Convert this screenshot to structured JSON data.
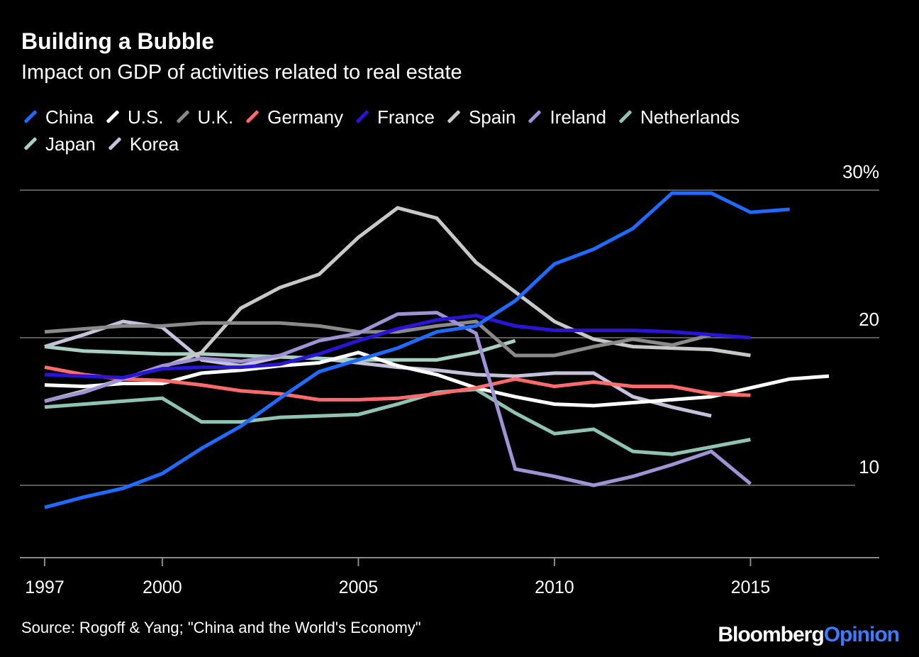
{
  "chart_data": {
    "type": "line",
    "title": "Building a Bubble",
    "subtitle": "Impact on GDP of activities related to real estate",
    "source": "Source: Rogoff & Yang; \"China and the World's Economy\"",
    "logo": {
      "part1": "Bloomberg",
      "part2": "Opinion"
    },
    "ylim": [
      5,
      30
    ],
    "xlim": [
      1997,
      2018
    ],
    "y_ticks": [
      {
        "value": 30,
        "label": "30%"
      },
      {
        "value": 20,
        "label": "20"
      },
      {
        "value": 10,
        "label": "10"
      }
    ],
    "x_ticks": [
      {
        "value": 1997,
        "label": "1997"
      },
      {
        "value": 2000,
        "label": "2000"
      },
      {
        "value": 2005,
        "label": "2005"
      },
      {
        "value": 2010,
        "label": "2010"
      },
      {
        "value": 2015,
        "label": "2015"
      }
    ],
    "grid": true,
    "legend_position": "top",
    "series": [
      {
        "name": "Korea",
        "color": "#c5c3dc",
        "x": [
          1997,
          1998,
          1999,
          2000,
          2001,
          2002,
          2003,
          2004,
          2005,
          2006,
          2007,
          2008,
          2009,
          2010,
          2011,
          2012,
          2013,
          2014
        ],
        "y": [
          19.4,
          20.2,
          21.1,
          20.7,
          18.5,
          18.1,
          18.7,
          18.6,
          18.3,
          18.0,
          17.8,
          17.5,
          17.4,
          17.6,
          17.6,
          16.0,
          15.3,
          14.7
        ]
      },
      {
        "name": "Japan",
        "color": "#a7cfc2",
        "x": [
          1997,
          1998,
          1999,
          2000,
          2001,
          2002,
          2003,
          2004,
          2005,
          2006,
          2007,
          2008,
          2009
        ],
        "y": [
          19.4,
          19.1,
          19.0,
          18.9,
          18.9,
          18.8,
          18.7,
          18.6,
          18.5,
          18.5,
          18.5,
          19.0,
          19.8
        ]
      },
      {
        "name": "Netherlands",
        "color": "#8fc3b3",
        "x": [
          1997,
          1998,
          1999,
          2000,
          2001,
          2002,
          2003,
          2004,
          2005,
          2006,
          2007,
          2008,
          2009,
          2010,
          2011,
          2012,
          2013,
          2014,
          2015
        ],
        "y": [
          15.3,
          15.5,
          15.7,
          15.9,
          14.3,
          14.3,
          14.6,
          14.7,
          14.8,
          15.5,
          16.3,
          16.5,
          14.9,
          13.5,
          13.8,
          12.3,
          12.1,
          12.6,
          13.1
        ]
      },
      {
        "name": "Spain",
        "color": "#c8c8c8",
        "x": [
          1997,
          1998,
          1999,
          2000,
          2001,
          2002,
          2003,
          2004,
          2005,
          2006,
          2007,
          2008,
          2009,
          2010,
          2011,
          2012,
          2013,
          2014,
          2015
        ],
        "y": [
          15.7,
          16.4,
          17.2,
          18.0,
          19.0,
          22.0,
          23.4,
          24.3,
          26.8,
          28.8,
          28.1,
          25.1,
          23.1,
          21.1,
          19.9,
          19.4,
          19.3,
          19.2,
          18.8
        ]
      },
      {
        "name": "U.K.",
        "color": "#8a8a8a",
        "x": [
          1997,
          1998,
          1999,
          2000,
          2001,
          2002,
          2003,
          2004,
          2005,
          2006,
          2007,
          2008,
          2009,
          2010,
          2011,
          2012,
          2013,
          2014
        ],
        "y": [
          20.4,
          20.6,
          20.8,
          20.8,
          21.0,
          21.0,
          21.0,
          20.8,
          20.4,
          20.4,
          20.8,
          21.1,
          18.8,
          18.8,
          19.4,
          19.9,
          19.5,
          20.2
        ]
      },
      {
        "name": "U.S.",
        "color": "#ffffff",
        "x": [
          1997,
          1998,
          1999,
          2000,
          2001,
          2002,
          2003,
          2004,
          2005,
          2006,
          2007,
          2008,
          2009,
          2010,
          2011,
          2012,
          2013,
          2014,
          2015,
          2016,
          2017
        ],
        "y": [
          16.8,
          16.7,
          16.9,
          16.9,
          17.6,
          17.8,
          18.1,
          18.3,
          19.0,
          18.1,
          17.5,
          16.6,
          16.0,
          15.5,
          15.4,
          15.6,
          15.8,
          16.0,
          16.6,
          17.2,
          17.4
        ]
      },
      {
        "name": "Germany",
        "color": "#ff6b6b",
        "x": [
          1997,
          1998,
          1999,
          2000,
          2001,
          2002,
          2003,
          2004,
          2005,
          2006,
          2007,
          2008,
          2009,
          2010,
          2011,
          2012,
          2013,
          2014,
          2015
        ],
        "y": [
          18.0,
          17.5,
          17.2,
          17.1,
          16.8,
          16.4,
          16.2,
          15.8,
          15.8,
          15.9,
          16.2,
          16.6,
          17.2,
          16.7,
          17.0,
          16.7,
          16.7,
          16.2,
          16.1
        ]
      },
      {
        "name": "Ireland",
        "color": "#9f93d6",
        "x": [
          1997,
          1998,
          1999,
          2000,
          2001,
          2002,
          2003,
          2004,
          2005,
          2006,
          2007,
          2008,
          2009,
          2010,
          2011,
          2012,
          2013,
          2014,
          2015
        ],
        "y": [
          15.7,
          16.3,
          17.2,
          18.1,
          18.6,
          18.4,
          18.8,
          19.8,
          20.3,
          21.6,
          21.7,
          20.3,
          11.1,
          10.6,
          10.0,
          10.6,
          11.4,
          12.3,
          10.1
        ]
      },
      {
        "name": "France",
        "color": "#2b14d9",
        "x": [
          1997,
          1998,
          1999,
          2000,
          2001,
          2002,
          2003,
          2004,
          2005,
          2006,
          2007,
          2008,
          2009,
          2010,
          2011,
          2012,
          2013,
          2014,
          2015
        ],
        "y": [
          17.5,
          17.4,
          17.3,
          17.9,
          18.0,
          18.0,
          18.2,
          18.9,
          19.8,
          20.6,
          21.2,
          21.5,
          20.8,
          20.5,
          20.5,
          20.5,
          20.4,
          20.2,
          20.0
        ]
      },
      {
        "name": "China",
        "color": "#1f6bff",
        "x": [
          1997,
          1998,
          1999,
          2000,
          2001,
          2002,
          2003,
          2004,
          2005,
          2006,
          2007,
          2008,
          2009,
          2010,
          2011,
          2012,
          2013,
          2014,
          2015,
          2016
        ],
        "y": [
          8.5,
          9.2,
          9.8,
          10.8,
          12.5,
          14.0,
          15.9,
          17.7,
          18.5,
          19.3,
          20.4,
          20.8,
          22.5,
          25.0,
          26.0,
          27.4,
          29.8,
          29.8,
          28.5,
          28.7
        ]
      }
    ],
    "legend_order": [
      "China",
      "U.S.",
      "U.K.",
      "Germany",
      "France",
      "Spain",
      "Ireland",
      "Netherlands",
      "Japan",
      "Korea"
    ]
  }
}
